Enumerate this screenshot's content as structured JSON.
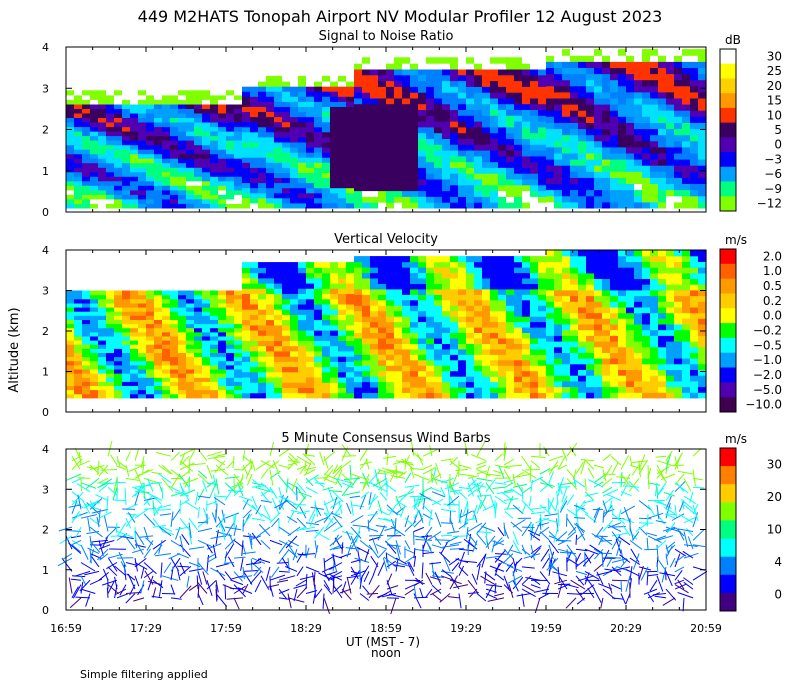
{
  "title": "449 M2HATS Tonopah Airport NV Modular Profiler 12 August 2023",
  "footnote": "Simple filtering applied",
  "shared_axes": {
    "ylabel": "Altitude (km)",
    "xlabel": "UT  (MST - 7)",
    "noon_label": "noon",
    "x_tick_labels": [
      "16:59",
      "17:29",
      "17:59",
      "18:29",
      "18:59",
      "19:29",
      "19:59",
      "20:29",
      "20:59"
    ],
    "y_tick_labels": [
      "0",
      "1",
      "2",
      "3",
      "4"
    ],
    "ylim": [
      0,
      4
    ]
  },
  "chart_data": [
    {
      "type": "heatmap",
      "title": "Signal to Noise Ratio",
      "unit": "dB",
      "xlabel": "UT  (MST - 7)",
      "ylabel": "Altitude (km)",
      "ylim": [
        0,
        4
      ],
      "colorbar": {
        "labels": [
          "30",
          "25",
          "20",
          "15",
          "10",
          "5",
          "0",
          "−3",
          "−6",
          "−9",
          "−12"
        ],
        "colors": [
          "#ffffff",
          "#ffff00",
          "#ffd000",
          "#ff9900",
          "#ff3300",
          "#3a0060",
          "#5000b0",
          "#0000ff",
          "#00a0ff",
          "#00ff80",
          "#80ff00"
        ]
      },
      "values": "two-dimensional field of signal to noise ratio versus time and altitude"
    },
    {
      "type": "heatmap",
      "title": "Vertical Velocity",
      "unit": "m/s",
      "xlabel": "UT  (MST - 7)",
      "ylabel": "Altitude (km)",
      "ylim": [
        0,
        4
      ],
      "colorbar": {
        "labels": [
          "2.0",
          "1.0",
          "0.5",
          "0.2",
          "0.0",
          "−0.2",
          "−0.5",
          "−1.0",
          "−2.0",
          "−5.0",
          "−10.0"
        ],
        "colors": [
          "#ff0000",
          "#ff6000",
          "#ff9900",
          "#ffcc00",
          "#ffff00",
          "#00ff00",
          "#00ffff",
          "#00a0ff",
          "#0000ff",
          "#5000b0",
          "#400050"
        ]
      },
      "values": "two-dimensional field of vertical velocity versus time and altitude"
    },
    {
      "type": "scatter",
      "title": "5 Minute Consensus Wind Barbs",
      "unit": "m/s",
      "xlabel": "UT  (MST - 7)",
      "ylabel": "Altitude (km)",
      "ylim": [
        0,
        4
      ],
      "colorbar": {
        "labels": [
          "30",
          "20",
          "10",
          "4",
          "0"
        ],
        "colors": [
          "#ff0000",
          "#ff8000",
          "#ffcc00",
          "#80ff00",
          "#00ff80",
          "#00ffff",
          "#0080ff",
          "#0000ff",
          "#400080"
        ]
      },
      "values": "wind barbs at altitudes 0.3 to 4 km, colored by wind speed"
    }
  ]
}
